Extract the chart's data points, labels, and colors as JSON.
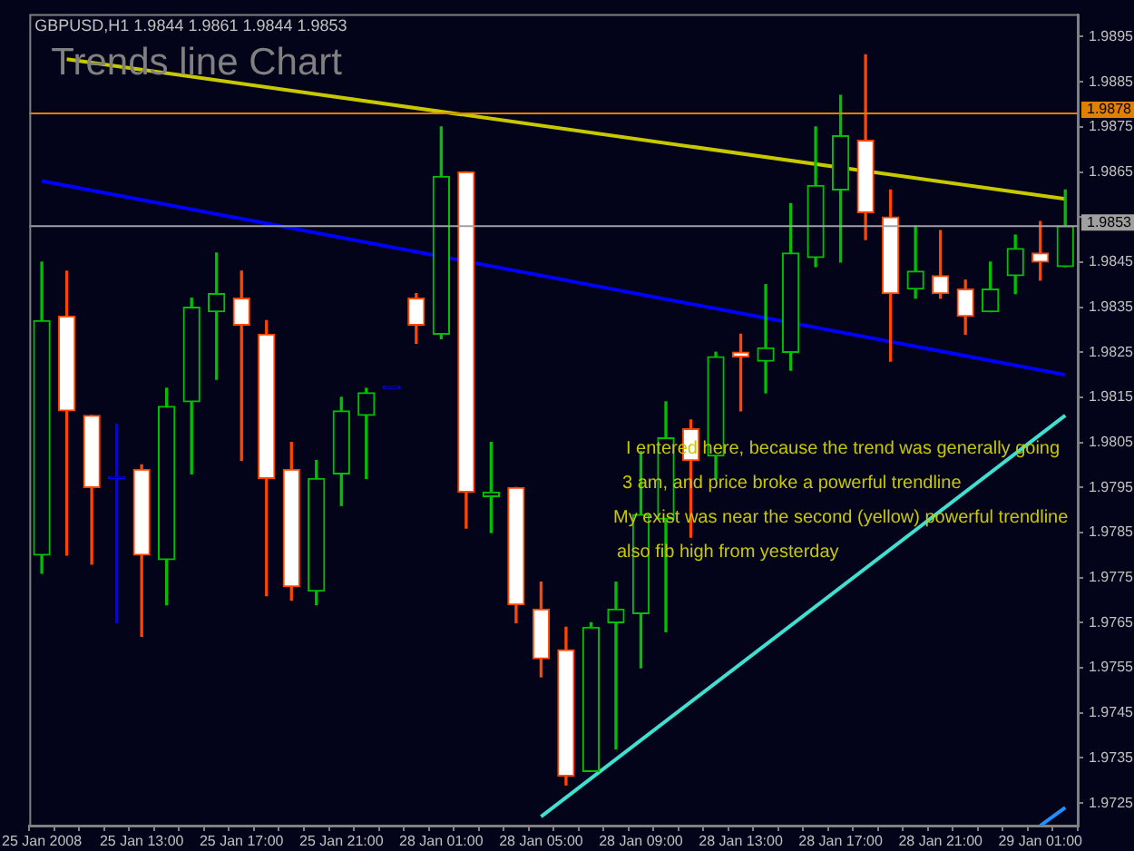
{
  "chart_data": {
    "type": "candlestick",
    "title": "Trends line Chart",
    "subtitle": "GBPUSD,H1 1.9844 1.9861 1.9844 1.9853",
    "annotations": [
      "I entered here, because the trend was generally going",
      "3 am, and price broke a powerful trendline",
      "My exist was near the second (yellow) powerful trendline",
      "also fib high from yesterday"
    ],
    "categories": [
      "25 Jan 2008",
      null,
      null,
      null,
      "25 Jan 13:00",
      null,
      null,
      null,
      "25 Jan 17:00",
      null,
      null,
      null,
      "25 Jan 21:00",
      null,
      null,
      null,
      "28 Jan 01:00",
      null,
      null,
      null,
      "28 Jan 05:00",
      null,
      null,
      null,
      "28 Jan 09:00",
      null,
      null,
      null,
      "28 Jan 13:00",
      null,
      null,
      null,
      "28 Jan 17:00",
      null,
      null,
      null,
      "28 Jan 21:00",
      null,
      null,
      null,
      "29 Jan 01:00",
      null
    ],
    "ohlc": [
      [
        1.978,
        1.9845,
        1.9776,
        1.9832
      ],
      [
        1.9833,
        1.9843,
        1.978,
        1.9812
      ],
      [
        1.9811,
        1.9811,
        1.9778,
        1.9795
      ],
      [
        1.9797,
        1.9809,
        1.9765,
        1.9797
      ],
      [
        1.9799,
        1.98,
        1.9762,
        1.978
      ],
      [
        1.9779,
        1.9817,
        1.9769,
        1.9813
      ],
      [
        1.9814,
        1.9837,
        1.9798,
        1.9835
      ],
      [
        1.9834,
        1.9847,
        1.9819,
        1.9838
      ],
      [
        1.9837,
        1.9843,
        1.9801,
        1.9831
      ],
      [
        1.9829,
        1.9832,
        1.9771,
        1.9797
      ],
      [
        1.9799,
        1.9805,
        1.977,
        1.9773
      ],
      [
        1.9772,
        1.9801,
        1.9769,
        1.9797
      ],
      [
        1.9798,
        1.9815,
        1.9791,
        1.9812
      ],
      [
        1.9811,
        1.9817,
        1.9797,
        1.9816
      ],
      [
        1.9817,
        1.9817,
        1.9817,
        1.9817
      ],
      [
        1.9837,
        1.9838,
        1.9827,
        1.9831
      ],
      [
        1.9829,
        1.9875,
        1.9828,
        1.9864
      ],
      [
        1.9865,
        1.9865,
        1.9786,
        1.9794
      ],
      [
        1.9793,
        1.9805,
        1.9785,
        1.9794
      ],
      [
        1.9795,
        1.9795,
        1.9765,
        1.9769
      ],
      [
        1.9768,
        1.9774,
        1.9753,
        1.9757
      ],
      [
        1.9759,
        1.9764,
        1.9729,
        1.9731
      ],
      [
        1.9732,
        1.9765,
        1.9732,
        1.9764
      ],
      [
        1.9765,
        1.9774,
        1.9737,
        1.9768
      ],
      [
        1.9767,
        1.9803,
        1.9755,
        1.9789
      ],
      [
        1.9788,
        1.9814,
        1.9763,
        1.9806
      ],
      [
        1.9808,
        1.981,
        1.9784,
        1.9801
      ],
      [
        1.9802,
        1.9825,
        1.9797,
        1.9824
      ],
      [
        1.9825,
        1.9829,
        1.9812,
        1.9824
      ],
      [
        1.9823,
        1.984,
        1.9816,
        1.9826
      ],
      [
        1.9825,
        1.9858,
        1.9821,
        1.9847
      ],
      [
        1.9846,
        1.9875,
        1.9844,
        1.9862
      ],
      [
        1.9861,
        1.9882,
        1.9845,
        1.9873
      ],
      [
        1.9872,
        1.9891,
        1.985,
        1.9856
      ],
      [
        1.9855,
        1.9861,
        1.9823,
        1.9838
      ],
      [
        1.9839,
        1.9853,
        1.9837,
        1.9843
      ],
      [
        1.9842,
        1.9852,
        1.9837,
        1.9838
      ],
      [
        1.9839,
        1.9841,
        1.9829,
        1.9833
      ],
      [
        1.9834,
        1.9845,
        1.9834,
        1.9839
      ],
      [
        1.9842,
        1.9851,
        1.9838,
        1.9848
      ],
      [
        1.9847,
        1.9854,
        1.9841,
        1.9845
      ],
      [
        1.9844,
        1.9861,
        1.9844,
        1.9853
      ]
    ],
    "colors": [
      "#00c000",
      "#ff4500",
      "#ff4500",
      "#0000ff",
      "#ff4500",
      "#00c000",
      "#00c000",
      "#00c000",
      "#ff4500",
      "#ff4500",
      "#ff4500",
      "#00c000",
      "#00c000",
      "#00c000",
      "#0000ff",
      "#ff4500",
      "#00c000",
      "#ff4500",
      "#00c000",
      "#ff4500",
      "#ff4500",
      "#ff4500",
      "#00c000",
      "#00c000",
      "#00c000",
      "#00c000",
      "#ff4500",
      "#00c000",
      "#ff4500",
      "#00c000",
      "#00c000",
      "#00c000",
      "#00c000",
      "#ff4500",
      "#ff4500",
      "#00c000",
      "#ff4500",
      "#ff4500",
      "#00c000",
      "#00c000",
      "#ff4500",
      "#00c000"
    ],
    "series": [
      {
        "type": "line",
        "color": "#c8c800",
        "values": [
          null,
          1.989,
          null,
          null,
          null,
          null,
          null,
          null,
          null,
          null,
          null,
          null,
          null,
          null,
          null,
          null,
          null,
          null,
          null,
          null,
          null,
          null,
          null,
          null,
          null,
          null,
          null,
          null,
          null,
          null,
          null,
          null,
          null,
          null,
          null,
          null,
          null,
          null,
          null,
          null,
          null,
          1.9859
        ]
      },
      {
        "type": "line",
        "color": "#0000ff",
        "values": [
          1.9863,
          null,
          null,
          null,
          null,
          null,
          null,
          null,
          null,
          null,
          null,
          null,
          null,
          null,
          null,
          null,
          null,
          null,
          null,
          null,
          null,
          null,
          null,
          null,
          null,
          null,
          null,
          null,
          null,
          null,
          null,
          null,
          null,
          null,
          null,
          null,
          null,
          null,
          null,
          null,
          null,
          1.982
        ]
      },
      {
        "type": "line",
        "color": "#40e0d0",
        "values": [
          null,
          null,
          null,
          null,
          null,
          null,
          null,
          null,
          null,
          null,
          null,
          null,
          null,
          null,
          null,
          null,
          null,
          null,
          null,
          null,
          1.9722,
          null,
          null,
          null,
          null,
          null,
          null,
          null,
          null,
          null,
          null,
          null,
          null,
          null,
          null,
          null,
          null,
          null,
          null,
          null,
          null,
          1.9811
        ]
      },
      {
        "type": "line",
        "color": "#1e90ff",
        "values": [
          null,
          null,
          null,
          null,
          null,
          null,
          null,
          null,
          null,
          null,
          null,
          null,
          null,
          null,
          null,
          null,
          null,
          null,
          null,
          null,
          null,
          null,
          null,
          null,
          null,
          null,
          null,
          null,
          null,
          null,
          null,
          null,
          null,
          null,
          null,
          null,
          null,
          null,
          null,
          null,
          1.972,
          1.9724
        ]
      }
    ],
    "ref_lines": [
      {
        "axis": "y",
        "value": 1.9878,
        "label": "1.9878",
        "color": "#e08000"
      },
      {
        "axis": "y",
        "value": 1.9853,
        "label": "1.9853",
        "color": "#a0a0a0"
      }
    ],
    "ylim": [
      1.972,
      1.99
    ],
    "yticks": [
      1.9725,
      1.9735,
      1.9745,
      1.9755,
      1.9765,
      1.9775,
      1.9785,
      1.9795,
      1.9805,
      1.9815,
      1.9825,
      1.9835,
      1.9845,
      {
        "value": 1.9855,
        "label": null
      },
      1.9865,
      1.9875,
      1.9885,
      1.9895
    ]
  }
}
